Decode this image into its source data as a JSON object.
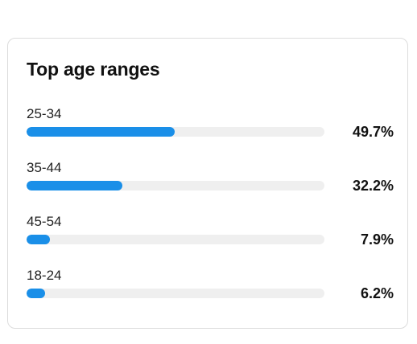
{
  "card": {
    "title": "Top age ranges"
  },
  "colors": {
    "bar_fill": "#1a8fe8",
    "bar_track": "#efefef"
  },
  "age_ranges": [
    {
      "label": "25-34",
      "percent_text": "49.7%",
      "percent": 49.7
    },
    {
      "label": "35-44",
      "percent_text": "32.2%",
      "percent": 32.2
    },
    {
      "label": "45-54",
      "percent_text": "7.9%",
      "percent": 7.9
    },
    {
      "label": "18-24",
      "percent_text": "6.2%",
      "percent": 6.2
    }
  ]
}
